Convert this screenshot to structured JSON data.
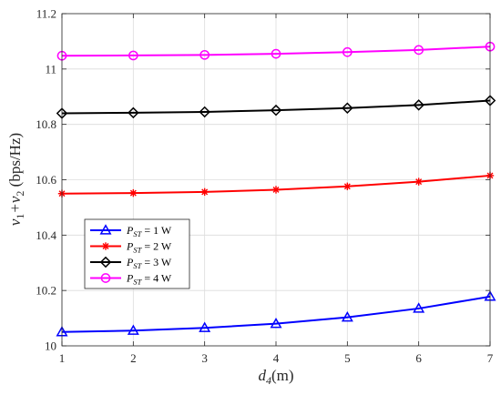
{
  "chart_data": {
    "type": "line",
    "x": [
      1,
      2,
      3,
      4,
      5,
      6,
      7
    ],
    "xlim": [
      1,
      7
    ],
    "ylim": [
      10,
      11.2
    ],
    "xticks": [
      "1",
      "2",
      "3",
      "4",
      "5",
      "6",
      "7"
    ],
    "yticks": [
      "10",
      "10.2",
      "10.4",
      "10.6",
      "10.8",
      "11",
      "11.2"
    ],
    "xlabel": {
      "main": "d",
      "sub": "4",
      "rest": "(m)"
    },
    "ylabel": {
      "v1": "v",
      "s1": "1",
      "plus": "+v",
      "s2": "2",
      "rest": " (bps/Hz)"
    },
    "grid": true,
    "legend_position": "lower-left",
    "series": [
      {
        "name": {
          "p": "P",
          "sub": "ST",
          "rest": " = 1 W"
        },
        "color": "#0000FF",
        "marker": "triangle",
        "values": [
          10.05,
          10.055,
          10.065,
          10.08,
          10.103,
          10.135,
          10.178
        ]
      },
      {
        "name": {
          "p": "P",
          "sub": "ST",
          "rest": " = 2 W"
        },
        "color": "#FF0000",
        "marker": "asterisk",
        "values": [
          10.55,
          10.552,
          10.556,
          10.564,
          10.576,
          10.593,
          10.615
        ]
      },
      {
        "name": {
          "p": "P",
          "sub": "ST",
          "rest": " = 3 W"
        },
        "color": "#000000",
        "marker": "diamond",
        "values": [
          10.84,
          10.842,
          10.845,
          10.851,
          10.859,
          10.87,
          10.886
        ]
      },
      {
        "name": {
          "p": "P",
          "sub": "ST",
          "rest": " = 4 W"
        },
        "color": "#FF00FF",
        "marker": "circle",
        "values": [
          11.048,
          11.049,
          11.051,
          11.055,
          11.061,
          11.069,
          11.081
        ]
      }
    ]
  }
}
